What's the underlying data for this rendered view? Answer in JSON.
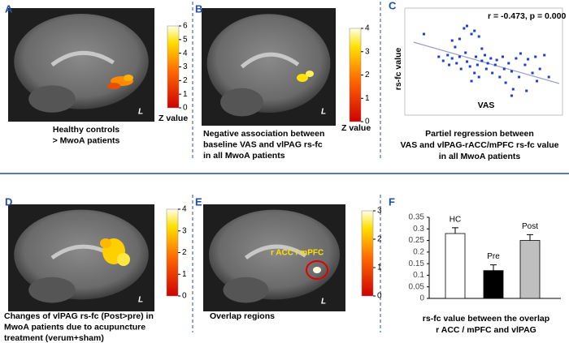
{
  "panels": [
    {
      "label": "A",
      "caption": [
        "Healthy controls",
        "> MwoA patients"
      ],
      "side": "L",
      "colorbar": {
        "title": "Z value",
        "ticks": [
          0,
          1,
          2,
          3,
          4,
          5,
          6
        ]
      }
    },
    {
      "label": "B",
      "caption": [
        "Negative association between",
        "baseline VAS and vlPAG rs-fc",
        "in all MwoA patients"
      ],
      "side": "L",
      "colorbar": {
        "title": "Z value",
        "ticks": [
          0,
          1,
          2,
          3,
          4
        ]
      }
    },
    {
      "label": "D",
      "caption": [
        "Changes of vlPAG rs-fc (Post>pre) in",
        "MwoA patients due to acupuncture",
        "treatment (verum+sham)"
      ],
      "side": "L",
      "colorbar": {
        "ticks": [
          0,
          1,
          2,
          3,
          4
        ]
      }
    },
    {
      "label": "E",
      "caption": [
        "Overlap regions"
      ],
      "side": "L",
      "annotation": "r ACC / mPFC",
      "colorbar": {
        "ticks": [
          0,
          1,
          2,
          3
        ]
      }
    }
  ],
  "chart_data": [
    {
      "type": "scatter",
      "label": "C",
      "annotation": "r = -0.473, p = 0.000",
      "x_label": "VAS",
      "y_label": "rs-fc value",
      "color": "#1a3fd0",
      "trend_color": "#9aa0c8",
      "caption": [
        "Partiel regression between",
        "VAS and vlPAG-rACC/mPFC rs-fc value",
        "in all MwoA patients"
      ],
      "xlim": [
        0,
        10
      ],
      "ylim": [
        0,
        10
      ],
      "x": [
        0.9,
        2.8,
        3.0,
        3.3,
        3.6,
        3.8,
        4.1,
        4.3,
        4.6,
        4.8,
        1.9,
        2.2,
        2.5,
        2.6,
        2.8,
        3.1,
        3.3,
        3.4,
        3.7,
        3.8,
        4.0,
        4.1,
        4.3,
        4.4,
        4.5,
        4.6,
        4.8,
        5.0,
        5.1,
        5.2,
        5.4,
        5.5,
        5.7,
        5.8,
        6.0,
        6.2,
        6.3,
        6.4,
        6.6,
        6.8,
        6.9,
        7.1,
        7.3,
        7.4,
        7.7,
        7.9,
        8.2,
        8.5,
        8.7,
        9.0,
        9.3,
        7.8,
        6.8,
        8.4
      ],
      "y": [
        8.8,
        8.0,
        7.2,
        8.2,
        9.5,
        9.8,
        8.8,
        9.2,
        8.5,
        7.0,
        6.0,
        5.5,
        6.2,
        5.0,
        5.8,
        5.2,
        6.0,
        4.5,
        6.5,
        5.4,
        4.8,
        3.0,
        4.0,
        6.0,
        5.0,
        3.5,
        5.5,
        6.2,
        4.5,
        5.2,
        5.8,
        4.0,
        5.0,
        5.6,
        3.5,
        6.0,
        4.5,
        2.8,
        5.2,
        4.2,
        2.0,
        5.8,
        3.5,
        6.4,
        5.0,
        5.7,
        4.0,
        3.0,
        4.5,
        6.2,
        3.5,
        1.8,
        1.2,
        6.0
      ],
      "trendline": {
        "x": [
          0.2,
          10
        ],
        "y": [
          7.8,
          2.7
        ]
      }
    },
    {
      "type": "bar",
      "label": "F",
      "caption": [
        "rs-fc value between the overlap",
        "r ACC / mPFC and vlPAG"
      ],
      "categories": [
        "HC",
        "Pre",
        "Post"
      ],
      "values": [
        0.28,
        0.12,
        0.25
      ],
      "errors": [
        0.025,
        0.025,
        0.025
      ],
      "colors": [
        "#ffffff",
        "#000000",
        "#bfbfbf"
      ],
      "ylim": [
        0,
        0.35
      ],
      "yticks": [
        0,
        0.05,
        0.1,
        0.15,
        0.2,
        0.25,
        0.3,
        0.35
      ]
    }
  ]
}
